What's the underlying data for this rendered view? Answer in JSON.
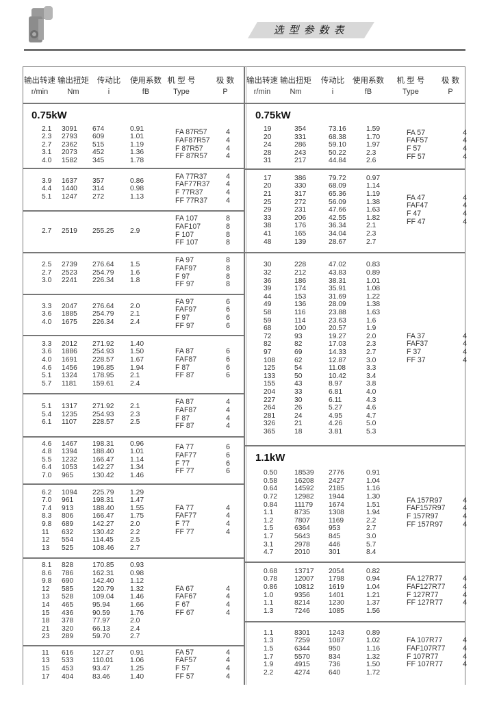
{
  "page_title": "选型参数表",
  "header": {
    "columns": [
      {
        "cn": "输出转速",
        "en": "r/min"
      },
      {
        "cn": "输出扭矩",
        "en": "Nm"
      },
      {
        "cn": "传动比",
        "en": "i"
      },
      {
        "cn": "使用系数",
        "en": "fB"
      },
      {
        "cn": "机 型 号",
        "en": "Type"
      },
      {
        "cn": "极  数",
        "en": "P"
      }
    ]
  },
  "left": {
    "groups": [
      {
        "title": "0.75kW",
        "rows": [
          [
            "2.1",
            "3091",
            "674",
            "0.91"
          ],
          [
            "2.3",
            "2793",
            "609",
            "1.01"
          ],
          [
            "2.7",
            "2362",
            "515",
            "1.19"
          ],
          [
            "3.1",
            "2073",
            "452",
            "1.36"
          ],
          [
            "4.0",
            "1582",
            "345",
            "1.78"
          ]
        ],
        "types": [
          [
            "FA 87R57",
            "4"
          ],
          [
            "FAF87R57",
            "4"
          ],
          [
            "F 87R57",
            "4"
          ],
          [
            "FF 87R57",
            "4"
          ]
        ]
      },
      {
        "rows": [
          [
            "3.9",
            "1637",
            "357",
            "0.86"
          ],
          [
            "4.4",
            "1440",
            "314",
            "0.98"
          ],
          [
            "5.1",
            "1247",
            "272",
            "1.13"
          ]
        ],
        "types": [
          [
            "FA 77R37",
            "4"
          ],
          [
            "FAF77R37",
            "4"
          ],
          [
            "F 77R37",
            "4"
          ],
          [
            "FF 77R37",
            "4"
          ]
        ]
      },
      {
        "rows": [
          [
            "2.7",
            "2519",
            "255.25",
            "2.9"
          ]
        ],
        "types": [
          [
            "FA 107",
            "8"
          ],
          [
            "FAF107",
            "8"
          ],
          [
            "F 107",
            "8"
          ],
          [
            "FF 107",
            "8"
          ]
        ]
      },
      {
        "rows": [
          [
            "2.5",
            "2739",
            "276.64",
            "1.5"
          ],
          [
            "2.7",
            "2523",
            "254.79",
            "1.6"
          ],
          [
            "3.0",
            "2241",
            "226.34",
            "1.8"
          ]
        ],
        "types": [
          [
            "FA 97",
            "8"
          ],
          [
            "FAF97",
            "8"
          ],
          [
            "F 97",
            "8"
          ],
          [
            "FF 97",
            "8"
          ]
        ]
      },
      {
        "rows": [
          [
            "3.3",
            "2047",
            "276.64",
            "2.0"
          ],
          [
            "3.6",
            "1885",
            "254.79",
            "2.1"
          ],
          [
            "4.0",
            "1675",
            "226.34",
            "2.4"
          ]
        ],
        "types": [
          [
            "FA 97",
            "6"
          ],
          [
            "FAF97",
            "6"
          ],
          [
            "F 97",
            "6"
          ],
          [
            "FF 97",
            "6"
          ]
        ]
      },
      {
        "rows": [
          [
            "3.3",
            "2012",
            "271.92",
            "1.40"
          ],
          [
            "3.6",
            "1886",
            "254.93",
            "1.50"
          ],
          [
            "4.0",
            "1691",
            "228.57",
            "1.67"
          ],
          [
            "4.6",
            "1456",
            "196.85",
            "1.94"
          ],
          [
            "5.1",
            "1324",
            "178.95",
            "2.1"
          ],
          [
            "5.7",
            "1181",
            "159.61",
            "2.4"
          ]
        ],
        "types": [
          [
            "FA 87",
            "6"
          ],
          [
            "FAF87",
            "6"
          ],
          [
            "F 87",
            "6"
          ],
          [
            "FF 87",
            "6"
          ]
        ]
      },
      {
        "rows": [
          [
            "5.1",
            "1317",
            "271.92",
            "2.1"
          ],
          [
            "5.4",
            "1235",
            "254.93",
            "2.3"
          ],
          [
            "6.1",
            "1107",
            "228.57",
            "2.5"
          ]
        ],
        "types": [
          [
            "FA 87",
            "4"
          ],
          [
            "FAF87",
            "4"
          ],
          [
            "F 87",
            "4"
          ],
          [
            "FF 87",
            "4"
          ]
        ]
      },
      {
        "rows": [
          [
            "4.6",
            "1467",
            "198.31",
            "0.96"
          ],
          [
            "4.8",
            "1394",
            "188.40",
            "1.01"
          ],
          [
            "5.5",
            "1232",
            "166.47",
            "1.14"
          ],
          [
            "6.4",
            "1053",
            "142.27",
            "1.34"
          ],
          [
            "7.0",
            "965",
            "130.42",
            "1.46"
          ]
        ],
        "types": [
          [
            "FA 77",
            "6"
          ],
          [
            "FAF77",
            "6"
          ],
          [
            "F 77",
            "6"
          ],
          [
            "FF 77",
            "6"
          ]
        ]
      },
      {
        "rows": [
          [
            "6.2",
            "1094",
            "225.79",
            "1.29"
          ],
          [
            "7.0",
            "961",
            "198.31",
            "1.47"
          ],
          [
            "7.4",
            "913",
            "188.40",
            "1.55"
          ],
          [
            "8.3",
            "806",
            "166.47",
            "1.75"
          ],
          [
            "9.8",
            "689",
            "142.27",
            "2.0"
          ],
          [
            "11",
            "632",
            "130.42",
            "2.2"
          ],
          [
            "12",
            "554",
            "114.45",
            "2.5"
          ],
          [
            "13",
            "525",
            "108.46",
            "2.7"
          ]
        ],
        "types": [
          [
            "FA 77",
            "4"
          ],
          [
            "FAF77",
            "4"
          ],
          [
            "F 77",
            "4"
          ],
          [
            "FF 77",
            "4"
          ]
        ]
      },
      {
        "rows": [
          [
            "8.1",
            "828",
            "170.85",
            "0.93"
          ],
          [
            "8.6",
            "786",
            "162.31",
            "0.98"
          ],
          [
            "9.8",
            "690",
            "142.40",
            "1.12"
          ],
          [
            "12",
            "585",
            "120.79",
            "1.32"
          ],
          [
            "13",
            "528",
            "109.04",
            "1.46"
          ],
          [
            "14",
            "465",
            "95.94",
            "1.66"
          ],
          [
            "15",
            "436",
            "90.59",
            "1.76"
          ],
          [
            "18",
            "378",
            "77.97",
            "2.0"
          ],
          [
            "21",
            "320",
            "66.13",
            "2.4"
          ],
          [
            "23",
            "289",
            "59.70",
            "2.7"
          ]
        ],
        "types": [
          [
            "FA 67",
            "4"
          ],
          [
            "FAF67",
            "4"
          ],
          [
            "F 67",
            "4"
          ],
          [
            "FF 67",
            "4"
          ]
        ]
      },
      {
        "rows": [
          [
            "11",
            "616",
            "127.27",
            "0.91"
          ],
          [
            "13",
            "533",
            "110.01",
            "1.06"
          ],
          [
            "15",
            "453",
            "93.47",
            "1.25"
          ],
          [
            "17",
            "404",
            "83.46",
            "1.40"
          ]
        ],
        "types": [
          [
            "FA 57",
            "4"
          ],
          [
            "FAF57",
            "4"
          ],
          [
            "F 57",
            "4"
          ],
          [
            "FF 57",
            "4"
          ]
        ]
      }
    ]
  },
  "right": {
    "groups": [
      {
        "title": "0.75kW",
        "rows": [
          [
            "19",
            "354",
            "73.16",
            "1.59"
          ],
          [
            "20",
            "331",
            "68.38",
            "1.70"
          ],
          [
            "24",
            "286",
            "59.10",
            "1.97"
          ],
          [
            "28",
            "243",
            "50.22",
            "2.3"
          ],
          [
            "31",
            "217",
            "44.84",
            "2.6"
          ]
        ],
        "types": [
          [
            "FA 57",
            "4"
          ],
          [
            "FAF57",
            "4"
          ],
          [
            "F 57",
            "4"
          ],
          [
            "FF 57",
            "4"
          ]
        ]
      },
      {
        "rows": [
          [
            "17",
            "386",
            "79.72",
            "0.97"
          ],
          [
            "20",
            "330",
            "68.09",
            "1.14"
          ],
          [
            "21",
            "317",
            "65.36",
            "1.19"
          ],
          [
            "25",
            "272",
            "56.09",
            "1.38"
          ],
          [
            "29",
            "231",
            "47.66",
            "1.63"
          ],
          [
            "33",
            "206",
            "42.55",
            "1.82"
          ],
          [
            "38",
            "176",
            "36.34",
            "2.1"
          ],
          [
            "41",
            "165",
            "34.04",
            "2.3"
          ],
          [
            "48",
            "139",
            "28.67",
            "2.7"
          ]
        ],
        "types": [
          [
            "FA 47",
            "4"
          ],
          [
            "FAF47",
            "4"
          ],
          [
            "F 47",
            "4"
          ],
          [
            "FF 47",
            "4"
          ]
        ]
      },
      {
        "rows": [
          [
            "30",
            "228",
            "47.02",
            "0.83"
          ],
          [
            "32",
            "212",
            "43.83",
            "0.89"
          ],
          [
            "36",
            "186",
            "38.31",
            "1.01"
          ],
          [
            "39",
            "174",
            "35.91",
            "1.08"
          ],
          [
            "44",
            "153",
            "31.69",
            "1.22"
          ],
          [
            "49",
            "136",
            "28.09",
            "1.38"
          ],
          [
            "58",
            "116",
            "23.88",
            "1.63"
          ],
          [
            "59",
            "114",
            "23.63",
            "1.6"
          ],
          [
            "68",
            "100",
            "20.57",
            "1.9"
          ],
          [
            "72",
            "93",
            "19.27",
            "2.0"
          ],
          [
            "82",
            "82",
            "17.03",
            "2.3"
          ],
          [
            "97",
            "69",
            "14.33",
            "2.7"
          ],
          [
            "108",
            "62",
            "12.87",
            "3.0"
          ],
          [
            "125",
            "54",
            "11.08",
            "3.3"
          ],
          [
            "133",
            "50",
            "10.42",
            "3.4"
          ],
          [
            "155",
            "43",
            "8.97",
            "3.8"
          ],
          [
            "204",
            "33",
            "6.81",
            "4.0"
          ],
          [
            "227",
            "30",
            "6.11",
            "4.3"
          ],
          [
            "264",
            "26",
            "5.27",
            "4.6"
          ],
          [
            "281",
            "24",
            "4.95",
            "4.7"
          ],
          [
            "326",
            "21",
            "4.26",
            "5.0"
          ],
          [
            "365",
            "18",
            "3.81",
            "5.3"
          ]
        ],
        "types": [
          [
            "FA 37",
            "4"
          ],
          [
            "FAF37",
            "4"
          ],
          [
            "F 37",
            "4"
          ],
          [
            "FF 37",
            "4"
          ]
        ]
      },
      {
        "title": "1.1kW",
        "rows": [
          [
            "0.50",
            "18539",
            "2776",
            "0.91"
          ],
          [
            "0.58",
            "16208",
            "2427",
            "1.04"
          ],
          [
            "0.64",
            "14592",
            "2185",
            "1.16"
          ],
          [
            "0.72",
            "12982",
            "1944",
            "1.30"
          ],
          [
            "0.84",
            "11179",
            "1674",
            "1.51"
          ],
          [
            "1.1",
            "8735",
            "1308",
            "1.94"
          ],
          [
            "1.2",
            "7807",
            "1169",
            "2.2"
          ],
          [
            "1.5",
            "6364",
            "953",
            "2.7"
          ],
          [
            "1.7",
            "5643",
            "845",
            "3.0"
          ],
          [
            "3.1",
            "2978",
            "446",
            "5.7"
          ],
          [
            "4.7",
            "2010",
            "301",
            "8.4"
          ]
        ],
        "types": [
          [
            "FA 157R97",
            "4"
          ],
          [
            "FAF157R97",
            "4"
          ],
          [
            "F 157R97",
            "4"
          ],
          [
            "FF 157R97",
            "4"
          ]
        ]
      },
      {
        "rows": [
          [
            "0.68",
            "13717",
            "2054",
            "0.82"
          ],
          [
            "0.78",
            "12007",
            "1798",
            "0.94"
          ],
          [
            "0.86",
            "10812",
            "1619",
            "1.04"
          ],
          [
            "1.0",
            "9356",
            "1401",
            "1.21"
          ],
          [
            "1.1",
            "8214",
            "1230",
            "1.37"
          ],
          [
            "1.3",
            "7246",
            "1085",
            "1.56"
          ]
        ],
        "types": [
          [
            "FA 127R77",
            "4"
          ],
          [
            "FAF127R77",
            "4"
          ],
          [
            "F 127R77",
            "4"
          ],
          [
            "FF 127R77",
            "4"
          ]
        ]
      },
      {
        "rows": [
          [
            "1.1",
            "8301",
            "1243",
            "0.89"
          ],
          [
            "1.3",
            "7259",
            "1087",
            "1.02"
          ],
          [
            "1.5",
            "6344",
            "950",
            "1.16"
          ],
          [
            "1.7",
            "5570",
            "834",
            "1.32"
          ],
          [
            "1.9",
            "4915",
            "736",
            "1.50"
          ],
          [
            "2.2",
            "4274",
            "640",
            "1.72"
          ]
        ],
        "types": [
          [
            "FA 107R77",
            "4"
          ],
          [
            "FAF107R77",
            "4"
          ],
          [
            "F 107R77",
            "4"
          ],
          [
            "FF 107R77",
            "4"
          ]
        ]
      }
    ]
  },
  "colors": {
    "border": "#777777",
    "text": "#333333",
    "banner": "#d8d8d8"
  }
}
